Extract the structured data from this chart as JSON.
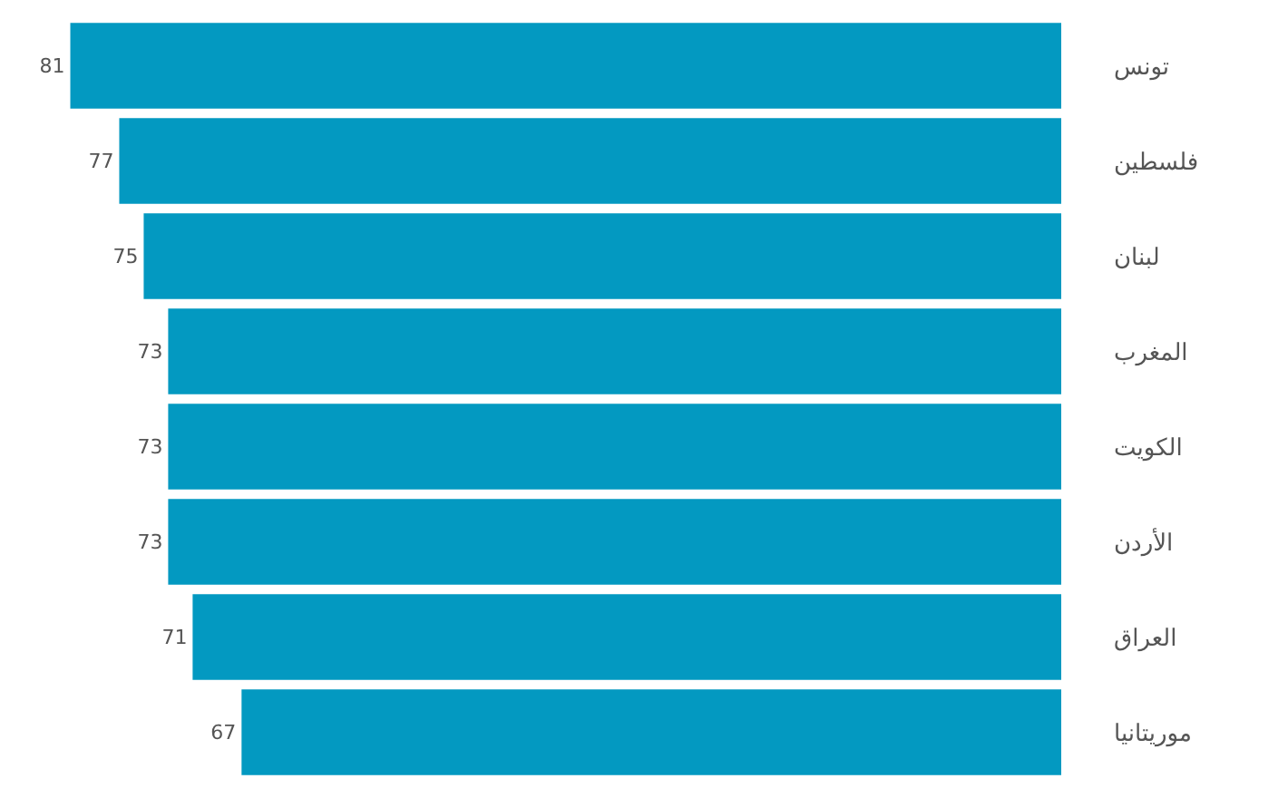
{
  "chart_data": {
    "type": "bar",
    "orientation": "horizontal",
    "categories": [
      "تونس",
      "فلسطين",
      "لبنان",
      "المغرب",
      "الكويت",
      "الأردن",
      "العراق",
      "موريتانيا"
    ],
    "values": [
      81,
      77,
      75,
      73,
      73,
      73,
      71,
      67
    ],
    "color": "#0399c1",
    "data_labels": true,
    "tick_labels": "y"
  }
}
